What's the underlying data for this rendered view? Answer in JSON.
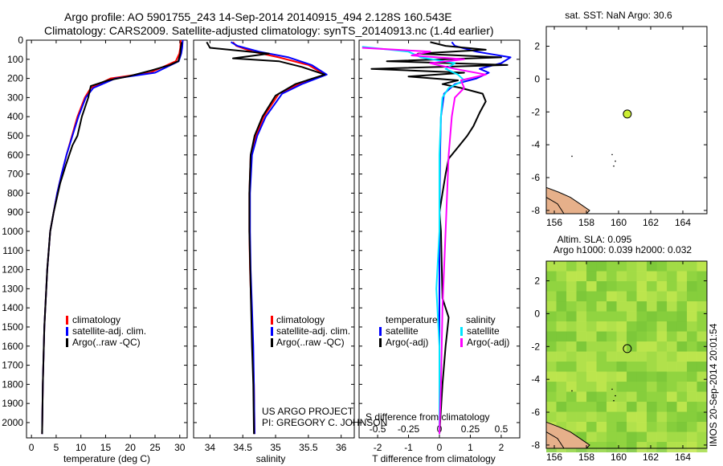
{
  "header": {
    "line1": "Argo profile: AO 5901755_243 14-Sep-2014 20140915_494 2.128S 160.543E",
    "line2": "Climatology: CARS2009. Satellite-adjusted climatology: synTS_20140913.nc (1.4d earlier)"
  },
  "credit": {
    "line1": "US ARGO PROJECT",
    "line2": "PI: GREGORY C. JOHNSON"
  },
  "side_stamp": "IMOS 20-Sep-2014 20:01:54",
  "colors": {
    "climatology": "#ff0000",
    "satellite": "#0000ff",
    "argo": "#000000",
    "sal_satellite": "#00e5ff",
    "sal_argo": "#ff00ff",
    "sst_marker": "#ccee33",
    "coast_fill": "#e6b08a"
  },
  "chart_data": [
    {
      "id": "temperature",
      "type": "line",
      "xlabel": "temperature (deg C)",
      "ylabel": "",
      "xlim": [
        -1,
        31.5
      ],
      "ylim": [
        2080,
        0
      ],
      "xticks": [
        0,
        5,
        10,
        15,
        20,
        25,
        30
      ],
      "yticks": [
        0,
        100,
        200,
        300,
        400,
        500,
        600,
        700,
        800,
        900,
        1000,
        1100,
        1200,
        1300,
        1400,
        1500,
        1600,
        1700,
        1800,
        1900,
        2000
      ],
      "legend": [
        "climatology",
        "satellite-adj. clim.",
        "Argo(..raw -QC)"
      ],
      "series": [
        {
          "name": "climatology",
          "color": "#ff0000",
          "x": [
            30.2,
            30.1,
            29.9,
            29.2,
            24,
            16,
            12,
            10.8,
            9.3,
            8.2,
            7.1,
            6.1,
            5.2,
            4.5,
            3.8,
            3.2,
            2.6,
            2.3,
            2.15
          ],
          "y": [
            0,
            40,
            70,
            110,
            170,
            200,
            250,
            300,
            400,
            500,
            600,
            700,
            800,
            900,
            1000,
            1200,
            1500,
            1800,
            2060
          ]
        },
        {
          "name": "satellite-adj. clim.",
          "color": "#0000ff",
          "x": [
            30.6,
            30.5,
            30.3,
            29.8,
            25,
            17,
            12.5,
            11,
            9.5,
            8.3,
            7.1,
            6.1,
            5.2,
            4.5,
            3.8,
            3.2,
            2.6,
            2.3,
            2.15
          ],
          "y": [
            0,
            40,
            70,
            110,
            170,
            200,
            250,
            300,
            400,
            500,
            600,
            700,
            800,
            900,
            1000,
            1200,
            1500,
            1800,
            2060
          ]
        },
        {
          "name": "Argo(..raw -QC)",
          "color": "#000000",
          "x": [
            30.4,
            30.2,
            30.1,
            29.7,
            28,
            24,
            19.5,
            15.5,
            12,
            11.5,
            10.2,
            9.3,
            8.3,
            7,
            5.8,
            4.5,
            3.8,
            3.2,
            2.6,
            2.3,
            2.15
          ],
          "y": [
            10,
            40,
            70,
            110,
            130,
            160,
            190,
            210,
            240,
            300,
            400,
            500,
            550,
            650,
            750,
            900,
            1000,
            1200,
            1500,
            1800,
            2060
          ]
        }
      ]
    },
    {
      "id": "salinity",
      "type": "line",
      "xlabel": "salinity",
      "ylabel": "",
      "xlim": [
        33.75,
        36.2
      ],
      "ylim": [
        2080,
        0
      ],
      "xticks": [
        34,
        34.5,
        35,
        35.5,
        36
      ],
      "legend": [
        "climatology",
        "satellite-adj. clim.",
        "Argo(..raw -QC)"
      ],
      "series": [
        {
          "name": "climatology",
          "color": "#ff0000",
          "x": [
            34.35,
            34.4,
            34.65,
            35.05,
            35.5,
            35.75,
            35.35,
            35.05,
            34.82,
            34.7,
            34.62,
            34.6,
            34.6,
            34.61,
            34.63,
            34.65,
            34.67,
            34.68
          ],
          "y": [
            10,
            30,
            60,
            90,
            130,
            180,
            230,
            280,
            400,
            500,
            600,
            800,
            1000,
            1200,
            1400,
            1600,
            1800,
            2060
          ]
        },
        {
          "name": "satellite-adj. clim.",
          "color": "#0000ff",
          "x": [
            34.32,
            34.42,
            34.75,
            35.2,
            35.55,
            35.78,
            35.4,
            35.1,
            34.85,
            34.72,
            34.64,
            34.61,
            34.61,
            34.62,
            34.64,
            34.66,
            34.67,
            34.68
          ],
          "y": [
            10,
            30,
            60,
            90,
            130,
            180,
            230,
            280,
            400,
            500,
            600,
            800,
            1000,
            1200,
            1400,
            1600,
            1800,
            2060
          ]
        },
        {
          "name": "Argo(..raw -QC)",
          "color": "#000000",
          "x": [
            33.95,
            34.0,
            34.9,
            34.35,
            35.05,
            35.4,
            35.75,
            35.3,
            35.0,
            34.8,
            34.68,
            34.62,
            34.6,
            34.6,
            34.62,
            34.64,
            34.66,
            34.67
          ],
          "y": [
            10,
            40,
            70,
            95,
            110,
            140,
            180,
            230,
            290,
            400,
            500,
            600,
            800,
            1000,
            1300,
            1600,
            1800,
            2060
          ]
        }
      ]
    },
    {
      "id": "difference",
      "type": "line",
      "xlabel": "T difference from climatology",
      "xlabel_top": "S difference from climatology",
      "xlim": [
        -2.6,
        2.6
      ],
      "ylim": [
        2080,
        0
      ],
      "xticks": [
        -2,
        -1,
        0,
        1,
        2
      ],
      "s_ticks": [
        "-0.5",
        "-0.25",
        "0",
        "0.25",
        "0.5"
      ],
      "legend_headers": [
        "temperature",
        "salinity"
      ],
      "legend": [
        "satellite",
        "Argo(-adj)",
        "satellite",
        "Argo(-adj)"
      ],
      "series": [
        {
          "name": "satellite",
          "color": "#0000ff",
          "x": [
            0.4,
            0.5,
            1.2,
            2.3,
            2.0,
            1.3,
            1.6,
            1.2,
            0.5,
            0.15,
            0.05,
            0.02,
            0,
            0,
            0,
            0
          ],
          "y": [
            10,
            30,
            60,
            90,
            120,
            150,
            170,
            200,
            230,
            280,
            400,
            600,
            1000,
            1400,
            1800,
            2060
          ]
        },
        {
          "name": "Argo(-adj)",
          "color": "#000000",
          "x": [
            -0.3,
            0.2,
            1.5,
            -0.7,
            2.0,
            -1.7,
            2.2,
            -2.2,
            0.8,
            -1.0,
            0.6,
            0.1,
            0.7,
            1.4,
            1.5,
            1.3,
            1.1,
            0.9,
            0.6,
            0.3,
            0.2,
            0.1,
            0,
            0.05,
            0.1,
            0.3,
            0.2,
            0.1,
            0
          ],
          "y": [
            10,
            30,
            50,
            70,
            90,
            110,
            130,
            150,
            170,
            190,
            210,
            230,
            250,
            280,
            320,
            380,
            450,
            500,
            560,
            620,
            700,
            800,
            900,
            1000,
            1350,
            1450,
            1600,
            1800,
            2060
          ]
        },
        {
          "name": "satellite",
          "color": "#00e5ff",
          "x": [
            -2.5,
            -1.0,
            -0.6,
            0.5,
            0.2,
            0.6,
            0.8,
            0.3,
            0.1,
            0.05,
            0,
            0,
            -0.1,
            0,
            0,
            0
          ],
          "y": [
            35,
            60,
            90,
            120,
            150,
            180,
            210,
            250,
            300,
            400,
            600,
            1000,
            1300,
            1600,
            1800,
            2060
          ]
        },
        {
          "name": "Argo(-adj)",
          "color": "#ff00ff",
          "x": [
            -2.5,
            -0.3,
            -0.9,
            0.8,
            -0.3,
            0.5,
            1.5,
            0.7,
            0.8,
            0.5,
            0.4,
            0.3,
            0.2,
            0.1,
            0.05,
            0
          ],
          "y": [
            40,
            60,
            80,
            100,
            120,
            150,
            180,
            210,
            250,
            300,
            400,
            600,
            1000,
            1400,
            1800,
            2060
          ]
        }
      ]
    },
    {
      "id": "sst_map",
      "type": "scatter",
      "title": "sat. SST: NaN Argo: 30.6",
      "xlim": [
        155.5,
        165.5
      ],
      "ylim": [
        -8.2,
        3.2
      ],
      "xticks": [
        156,
        158,
        160,
        162,
        164
      ],
      "yticks": [
        2,
        0,
        -2,
        -4,
        -6,
        -8
      ],
      "points": [
        {
          "lon": 160.543,
          "lat": -2.128
        }
      ]
    },
    {
      "id": "sla_map",
      "type": "heatmap",
      "title": "Altim. SLA: 0.095",
      "subtitle": "Argo h1000: 0.039 h2000: 0.032",
      "xlim": [
        155.5,
        165.5
      ],
      "ylim": [
        -8.2,
        3.2
      ],
      "xticks": [
        156,
        158,
        160,
        162,
        164
      ],
      "yticks": [
        2,
        0,
        -2,
        -4,
        -6,
        -8
      ],
      "points": [
        {
          "lon": 160.543,
          "lat": -2.128
        }
      ]
    }
  ]
}
